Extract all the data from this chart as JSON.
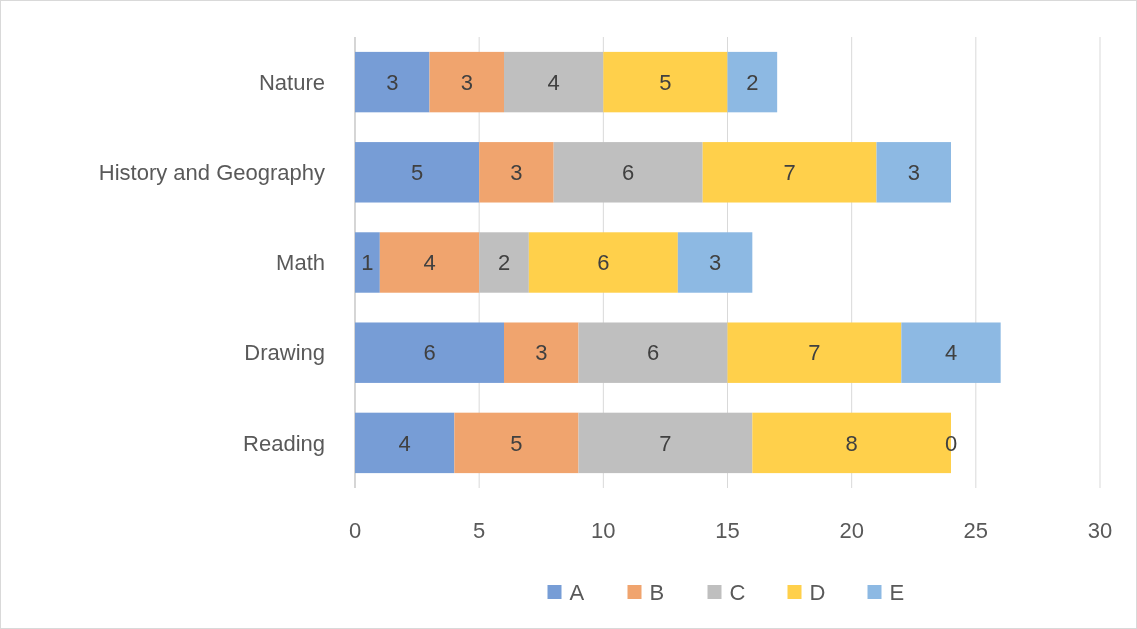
{
  "chart_data": {
    "type": "bar",
    "orientation": "horizontal",
    "stacked": true,
    "categories": [
      "Nature",
      "History and Geography",
      "Math",
      "Drawing",
      "Reading"
    ],
    "series": [
      {
        "name": "A",
        "color": "#779dd6",
        "values": [
          3,
          5,
          1,
          6,
          4
        ]
      },
      {
        "name": "B",
        "color": "#f0a46e",
        "values": [
          3,
          3,
          4,
          3,
          5
        ]
      },
      {
        "name": "C",
        "color": "#bfbfbf",
        "values": [
          4,
          6,
          2,
          6,
          7
        ]
      },
      {
        "name": "D",
        "color": "#ffd04b",
        "values": [
          5,
          7,
          6,
          7,
          8
        ]
      },
      {
        "name": "E",
        "color": "#8db9e3",
        "values": [
          2,
          3,
          3,
          4,
          0
        ]
      }
    ],
    "xlim": [
      0,
      30
    ],
    "xticks": [
      0,
      5,
      10,
      15,
      20,
      25,
      30
    ],
    "grid": "x",
    "legend": "bottom",
    "data_labels": true
  }
}
